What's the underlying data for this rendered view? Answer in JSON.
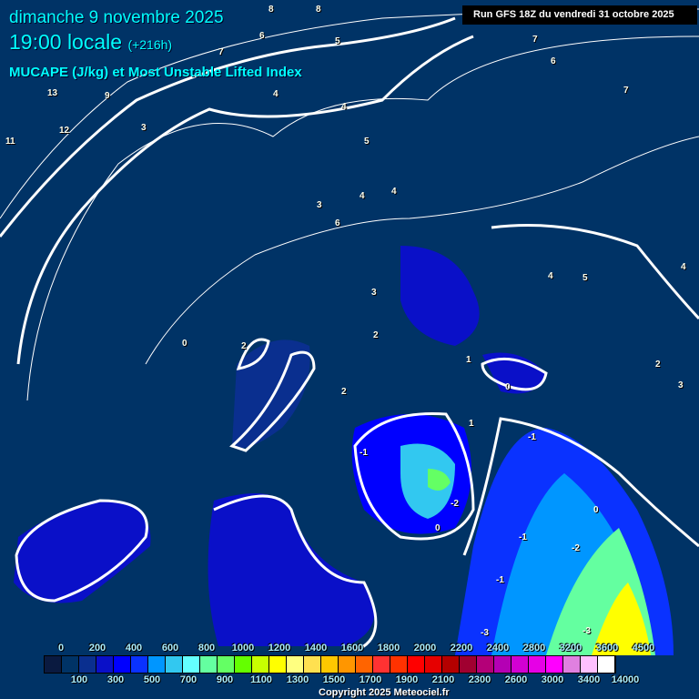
{
  "header": {
    "date": "dimanche 9 novembre 2025",
    "time": "19:00 locale",
    "lead": "(+216h)",
    "parameter": "MUCAPE (J/kg) et Most Unstable Lifted Index",
    "run": "Run GFS 18Z du vendredi 31 octobre 2025"
  },
  "colorbar": {
    "top_labels": [
      "0",
      "200",
      "400",
      "600",
      "800",
      "1000",
      "1200",
      "1400",
      "1600",
      "1800",
      "2000",
      "2200",
      "2400",
      "2800",
      "3200",
      "3600",
      "4500"
    ],
    "bottom_labels": [
      "100",
      "300",
      "500",
      "700",
      "900",
      "1100",
      "1300",
      "1500",
      "1700",
      "1900",
      "2100",
      "2300",
      "2600",
      "3000",
      "3400",
      "14000"
    ],
    "colors": [
      "#0a1a40",
      "#003366",
      "#0a2f8f",
      "#0a10c8",
      "#0000ff",
      "#0a32ff",
      "#0096ff",
      "#32c8f0",
      "#64ffff",
      "#64ffa0",
      "#64ff64",
      "#64ff00",
      "#c8ff00",
      "#ffff00",
      "#ffff80",
      "#ffe050",
      "#ffc800",
      "#ff9600",
      "#ff6400",
      "#ff3232",
      "#ff3200",
      "#ff0000",
      "#e60000",
      "#b40000",
      "#a00030",
      "#b40078",
      "#b400b4",
      "#d200d2",
      "#e600e6",
      "#ff00ff",
      "#e080e0",
      "#ffc0ff",
      "#ffffff"
    ]
  },
  "contour_labels": [
    "11",
    "8",
    "8",
    "13",
    "12",
    "9",
    "7",
    "6",
    "5",
    "7",
    "6",
    "7",
    "4",
    "4",
    "5",
    "3",
    "4",
    "4",
    "3",
    "6",
    "5",
    "4",
    "3",
    "2",
    "2",
    "2",
    "0",
    "0",
    "1",
    "-1",
    "-2",
    "-1",
    "0",
    "-1",
    "-2",
    "-1",
    "0",
    "-3",
    "-3",
    "1",
    "2",
    "3",
    "4"
  ],
  "copyright": "Copyright 2025 Meteociel.fr"
}
